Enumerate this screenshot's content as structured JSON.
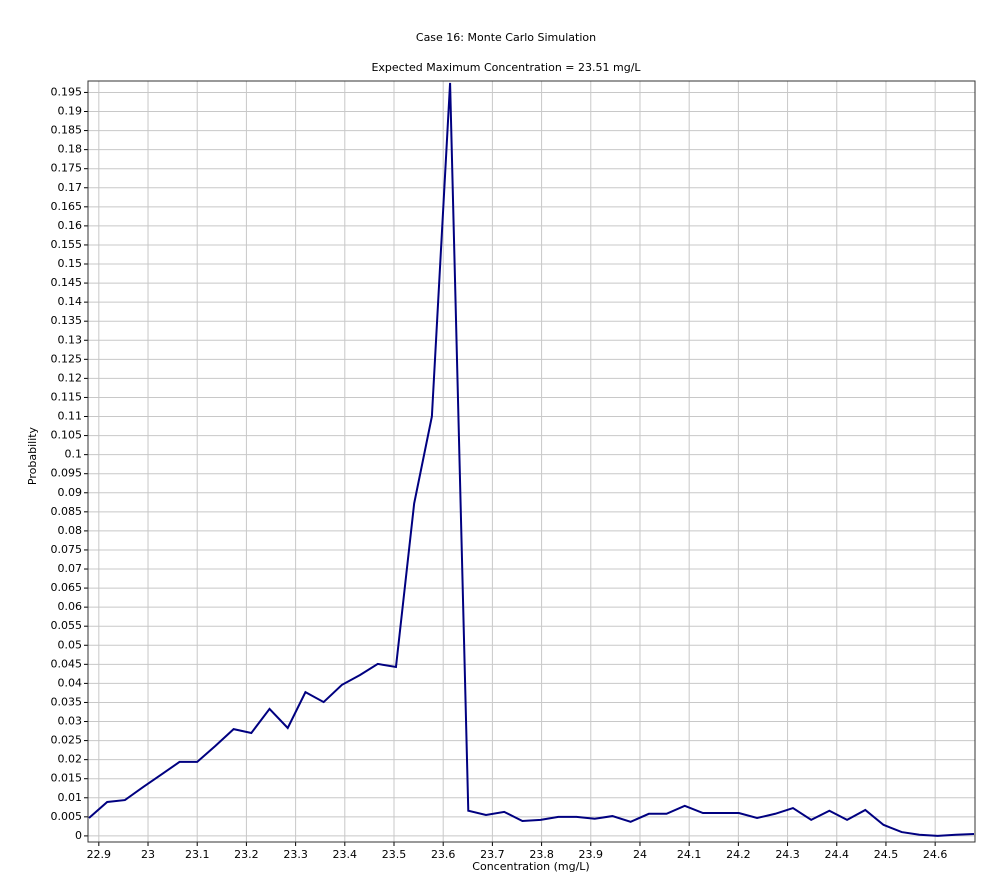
{
  "chart_data": {
    "type": "line",
    "title": "Case 16: Monte Carlo Simulation",
    "subtitle": "Expected Maximum Concentration = 23.51 mg/L",
    "x_label": "Concentration (mg/L)",
    "y_label": "Probability",
    "x": [
      22.88,
      22.917,
      22.953,
      22.99,
      23.027,
      23.064,
      23.1,
      23.137,
      23.174,
      23.21,
      23.247,
      23.284,
      23.32,
      23.357,
      23.394,
      23.431,
      23.467,
      23.504,
      23.541,
      23.577,
      23.614,
      23.651,
      23.687,
      23.724,
      23.761,
      23.798,
      23.834,
      23.871,
      23.908,
      23.944,
      23.981,
      24.018,
      24.054,
      24.091,
      24.128,
      24.165,
      24.201,
      24.238,
      24.275,
      24.311,
      24.348,
      24.385,
      24.421,
      24.458,
      24.495,
      24.532,
      24.568,
      24.605,
      24.642,
      24.679
    ],
    "series": [
      {
        "color": "#000080",
        "values": [
          0.0047,
          0.0089,
          0.0094,
          0.0128,
          0.0161,
          0.0194,
          0.0194,
          0.0236,
          0.028,
          0.027,
          0.0333,
          0.0283,
          0.0377,
          0.0351,
          0.0396,
          0.0422,
          0.0451,
          0.0443,
          0.0872,
          0.11,
          0.1975,
          0.0066,
          0.0055,
          0.0063,
          0.0039,
          0.0042,
          0.005,
          0.005,
          0.0045,
          0.0052,
          0.0037,
          0.0058,
          0.0058,
          0.0079,
          0.006,
          0.006,
          0.006,
          0.0047,
          0.0058,
          0.0073,
          0.0042,
          0.0066,
          0.0042,
          0.0068,
          0.0029,
          0.001,
          0.0003,
          0,
          0.0003,
          0.0005
        ]
      }
    ],
    "xlim": [
      22.878,
      24.681
    ],
    "ylim": [
      -0.0016,
      0.198
    ],
    "xticks": [
      22.9,
      23,
      23.1,
      23.2,
      23.3,
      23.4,
      23.5,
      23.6,
      23.7,
      23.8,
      23.9,
      24,
      24.1,
      24.2,
      24.3,
      24.4,
      24.5,
      24.6
    ],
    "yticks": [
      0,
      0.005,
      0.01,
      0.015,
      0.02,
      0.025,
      0.03,
      0.035,
      0.04,
      0.045,
      0.05,
      0.055,
      0.06,
      0.065,
      0.07,
      0.075,
      0.08,
      0.085,
      0.09,
      0.095,
      0.1,
      0.105,
      0.11,
      0.115,
      0.12,
      0.125,
      0.13,
      0.135,
      0.14,
      0.145,
      0.15,
      0.155,
      0.16,
      0.165,
      0.17,
      0.175,
      0.18,
      0.185,
      0.19,
      0.195
    ],
    "grid": true,
    "title_color": "#1a1acc"
  }
}
